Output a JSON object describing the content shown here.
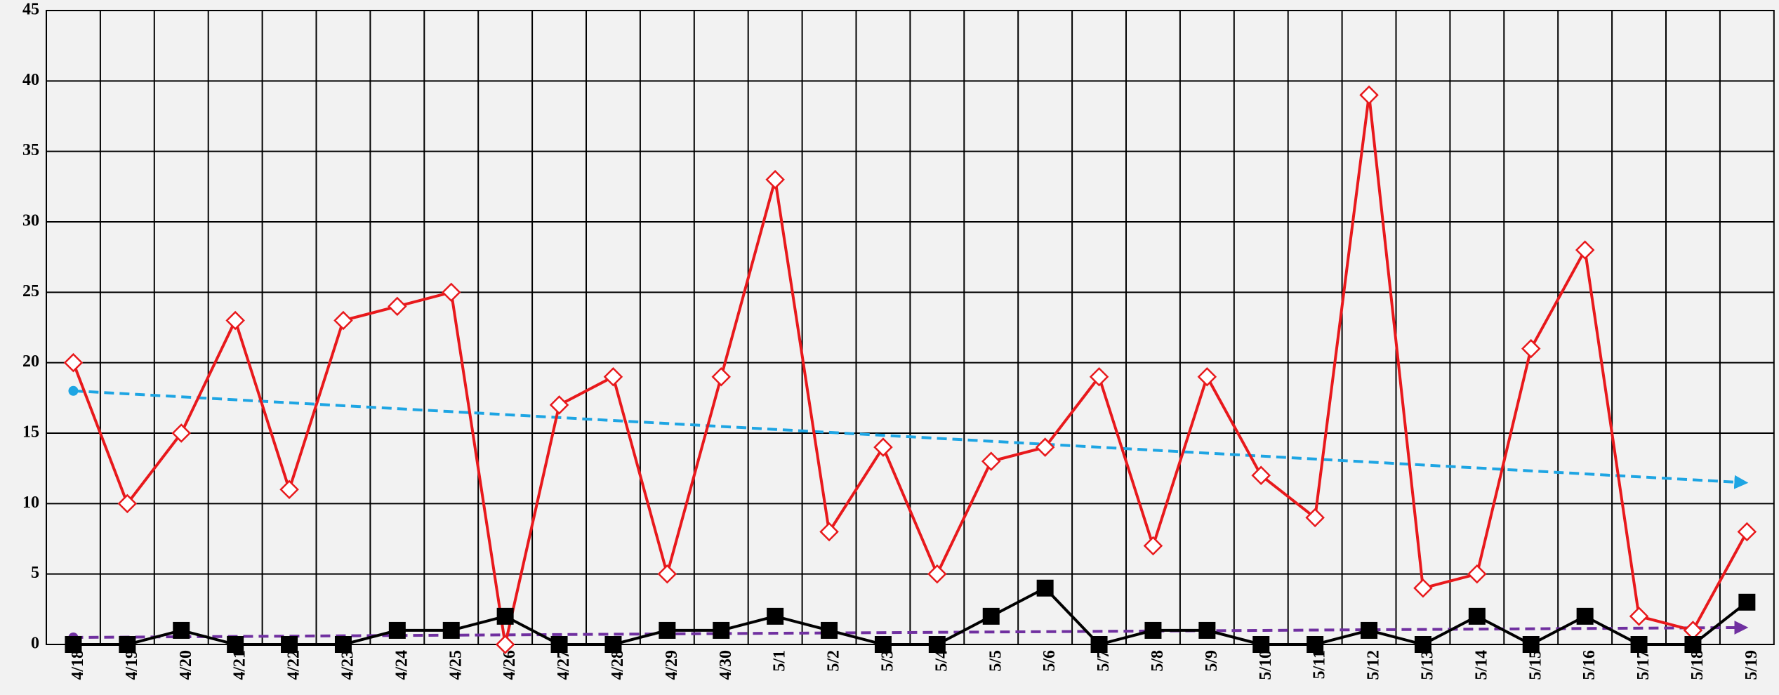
{
  "chart_data": {
    "type": "line",
    "categories": [
      "4/18",
      "4/19",
      "4/20",
      "4/21",
      "4/22",
      "4/23",
      "4/24",
      "4/25",
      "4/26",
      "4/27",
      "4/28",
      "4/29",
      "4/30",
      "5/1",
      "5/2",
      "5/3",
      "5/4",
      "5/5",
      "5/6",
      "5/7",
      "5/8",
      "5/9",
      "5/10",
      "5/11",
      "5/12",
      "5/13",
      "5/14",
      "5/15",
      "5/16",
      "5/17",
      "5/18",
      "5/19"
    ],
    "series": [
      {
        "color": "#e8191c",
        "marker": "diamond",
        "values": [
          20,
          10,
          15,
          23,
          11,
          23,
          24,
          25,
          0,
          17,
          19,
          5,
          19,
          33,
          8,
          14,
          5,
          13,
          14,
          19,
          7,
          19,
          12,
          9,
          39,
          4,
          5,
          21,
          28,
          2,
          1,
          8
        ]
      },
      {
        "color": "#000000",
        "marker": "square",
        "values": [
          0,
          0,
          1,
          0,
          0,
          0,
          1,
          1,
          2,
          0,
          0,
          1,
          1,
          2,
          1,
          0,
          0,
          2,
          4,
          0,
          1,
          1,
          0,
          0,
          1,
          0,
          2,
          0,
          2,
          0,
          0,
          3
        ]
      }
    ],
    "trendlines": [
      {
        "color": "#1ea5e3",
        "values": [
          18,
          11.5
        ]
      },
      {
        "color": "#7030a0",
        "values": [
          0.5,
          1.2
        ]
      }
    ],
    "ylim": [
      0,
      45
    ],
    "yticks": [
      0,
      5,
      10,
      15,
      20,
      25,
      30,
      35,
      40,
      45
    ],
    "grid": true
  }
}
